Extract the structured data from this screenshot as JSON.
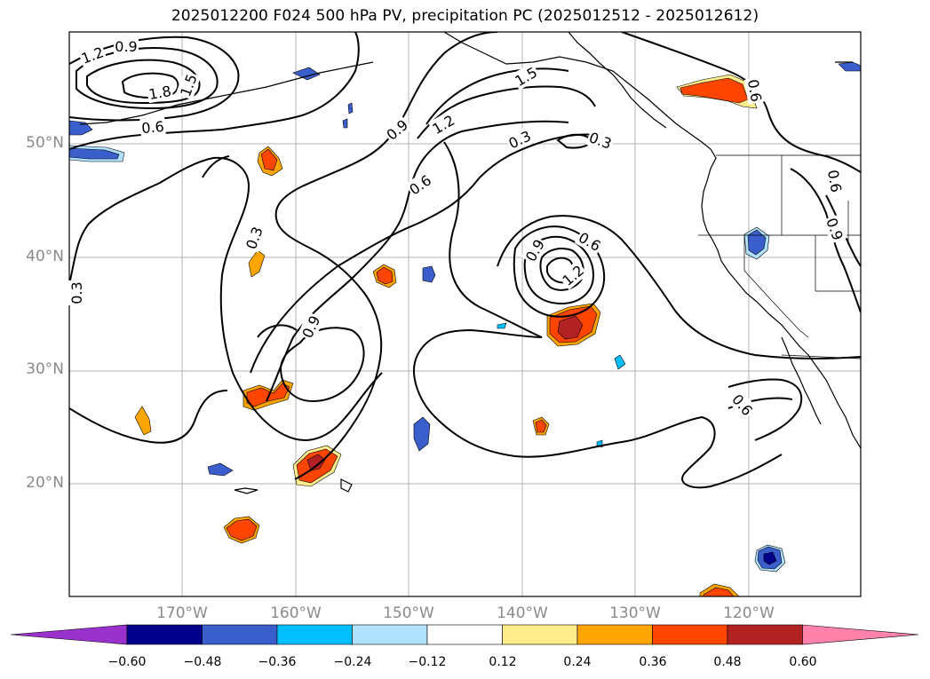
{
  "title": "2025012200 F024 500 hPa PV, precipitation PC (2025012512 - 2025012612)",
  "lat_labels": [
    "50°N",
    "40°N",
    "30°N",
    "20°N"
  ],
  "lon_labels": [
    "170°W",
    "160°W",
    "150°W",
    "140°W",
    "130°W",
    "120°W"
  ],
  "contour_labels": [
    "0.9",
    "1.2",
    "1.8",
    "1.5",
    "0.6",
    "0.3",
    "0.9",
    "1.2",
    "1.5",
    "0.3",
    "0.6",
    "0.3",
    "0.9",
    "0.6",
    "1.2",
    "0.3",
    "0.9",
    "0.6",
    "0.9",
    "0.6",
    "0.6",
    "0.3"
  ],
  "colorbar": {
    "ticks": [
      "−0.60",
      "−0.48",
      "−0.36",
      "−0.24",
      "−0.12",
      "0.12",
      "0.24",
      "0.36",
      "0.48",
      "0.60"
    ],
    "colors": [
      "#9932cc",
      "#00008b",
      "#3a5fcd",
      "#00bfff",
      "#b0e2ff",
      "#ffffff",
      "#ffec8b",
      "#ffa500",
      "#ff4500",
      "#b22222",
      "#ff82ab"
    ]
  }
}
